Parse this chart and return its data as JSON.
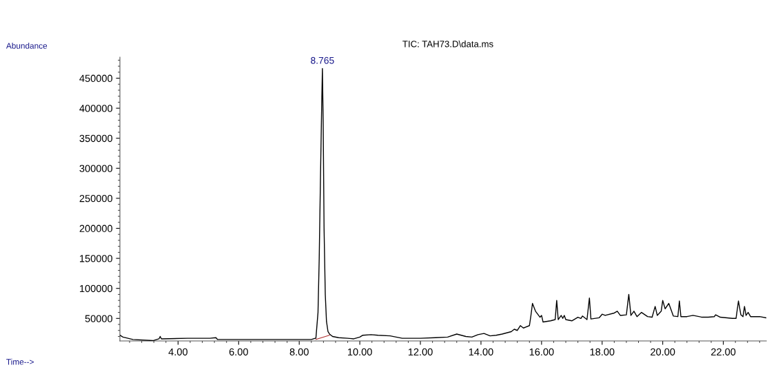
{
  "chart_data": {
    "type": "line",
    "title": "TIC: TAH73.D\\data.ms",
    "ylabel": "Abundance",
    "annotations": [
      {
        "text": "8.765",
        "x": 8.765,
        "y": 466000
      },
      "Time-->"
    ],
    "xlim": [
      2.08,
      23.42
    ],
    "ylim": [
      12500,
      485000
    ],
    "xticks": [
      {
        "value": 4,
        "label": "4.00"
      },
      {
        "value": 6,
        "label": "6.00"
      },
      {
        "value": 8,
        "label": "8.00"
      },
      {
        "value": 10,
        "label": "10.00"
      },
      {
        "value": 12,
        "label": "12.00"
      },
      {
        "value": 14,
        "label": "14.00"
      },
      {
        "value": 16,
        "label": "16.00"
      },
      {
        "value": 18,
        "label": "18.00"
      },
      {
        "value": 20,
        "label": "20.00"
      },
      {
        "value": 22,
        "label": "22.00"
      }
    ],
    "yticks": [
      50000,
      100000,
      150000,
      200000,
      250000,
      300000,
      350000,
      400000,
      450000
    ],
    "grid": false,
    "legend": false,
    "marker": "none",
    "line_style": "solid",
    "series": [
      {
        "color": "#000000",
        "x": [
          2.08,
          2.18,
          2.51,
          3.17,
          3.37,
          3.41,
          3.45,
          4.31,
          5.05,
          5.25,
          5.3,
          6.27,
          8.4,
          8.53,
          8.55,
          8.62,
          8.66,
          8.7,
          8.74,
          8.765,
          8.79,
          8.82,
          8.86,
          8.9,
          8.95,
          9.0,
          9.1,
          9.3,
          9.6,
          9.8,
          10.0,
          10.1,
          10.37,
          10.6,
          11.0,
          11.4,
          12.0,
          12.5,
          12.9,
          13.2,
          13.5,
          13.7,
          13.9,
          14.1,
          14.3,
          14.5,
          14.7,
          15.0,
          15.1,
          15.2,
          15.3,
          15.4,
          15.6,
          15.65,
          15.7,
          15.8,
          15.95,
          16.0,
          16.05,
          16.3,
          16.45,
          16.5,
          16.55,
          16.65,
          16.7,
          16.75,
          16.8,
          17.0,
          17.2,
          17.3,
          17.35,
          17.5,
          17.58,
          17.63,
          17.9,
          18.0,
          18.1,
          18.4,
          18.5,
          18.6,
          18.8,
          18.88,
          18.95,
          19.05,
          19.15,
          19.3,
          19.5,
          19.65,
          19.75,
          19.82,
          19.95,
          20.0,
          20.08,
          20.2,
          20.35,
          20.5,
          20.55,
          20.6,
          20.8,
          21.0,
          21.3,
          21.5,
          21.7,
          21.75,
          21.9,
          22.3,
          22.42,
          22.5,
          22.58,
          22.65,
          22.7,
          22.75,
          22.82,
          22.9,
          23.2,
          23.42
        ],
        "values": [
          22000,
          19000,
          15000,
          13000,
          16000,
          20000,
          16000,
          17000,
          17000,
          18000,
          15000,
          15000,
          15000,
          17000,
          17000,
          60000,
          150000,
          280000,
          400000,
          466000,
          380000,
          200000,
          90000,
          45000,
          28000,
          24000,
          20000,
          18000,
          17000,
          16000,
          19000,
          22000,
          23000,
          22000,
          21000,
          17000,
          17000,
          18000,
          19000,
          24000,
          20000,
          19000,
          23000,
          25000,
          21000,
          22000,
          24000,
          28000,
          32000,
          30000,
          38000,
          34000,
          38000,
          55000,
          75000,
          62000,
          52000,
          55000,
          44000,
          46000,
          48000,
          80000,
          48000,
          55000,
          50000,
          55000,
          48000,
          46000,
          52000,
          50000,
          54000,
          48000,
          84000,
          49000,
          51000,
          57000,
          55000,
          59000,
          62000,
          55000,
          56000,
          90000,
          55000,
          62000,
          53000,
          60000,
          53000,
          52000,
          70000,
          55000,
          62000,
          80000,
          66000,
          75000,
          54000,
          53000,
          79000,
          53000,
          53000,
          55000,
          52000,
          52000,
          53000,
          56000,
          52000,
          50000,
          50000,
          79000,
          56000,
          53000,
          70000,
          55000,
          60000,
          53000,
          53000,
          51000
        ]
      },
      {
        "color": "#b03030",
        "x": [
          8.55,
          9.0
        ],
        "values": [
          15000,
          22000
        ]
      }
    ]
  }
}
